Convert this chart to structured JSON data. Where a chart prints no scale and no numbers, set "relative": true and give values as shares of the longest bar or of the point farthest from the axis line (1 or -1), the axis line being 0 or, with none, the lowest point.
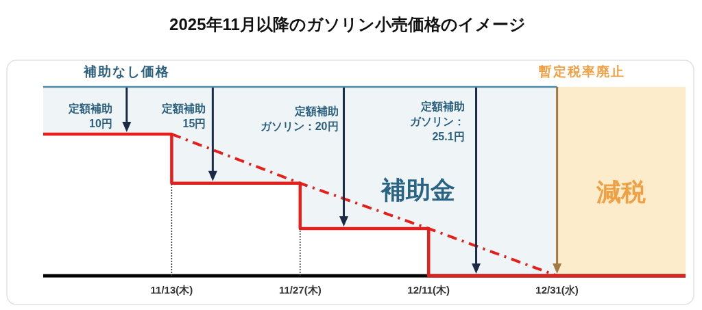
{
  "chart_data": {
    "type": "step",
    "title": "2025年11月以降のガソリン小売価格のイメージ",
    "relative": true,
    "tick_labels": "x",
    "categories": [
      null,
      "11/13(木)",
      "11/27(木)",
      "12/11(木)",
      "12/31(水)",
      null
    ],
    "series": [
      {
        "name": "補助なし価格",
        "type": "line",
        "color": "#4b8aab",
        "values": [
          1,
          1,
          1,
          1,
          1,
          null
        ],
        "lower": [
          0.75,
          0.49,
          0.25,
          0,
          0,
          null
        ],
        "upper": [
          1,
          1,
          1,
          1,
          1,
          null
        ]
      },
      {
        "name": "減税",
        "type": "area",
        "color": "#fdeccb",
        "values": [
          null,
          null,
          null,
          null,
          1,
          1
        ]
      },
      {
        "color": "#e3201b",
        "values": [
          0.75,
          0.49,
          0.25,
          0,
          0,
          0
        ]
      },
      {
        "type": "line",
        "line_style": "dashed",
        "color": "#e3201b",
        "values": [
          null,
          0.75,
          0.49,
          0.25,
          0,
          null
        ]
      },
      {
        "type": "line",
        "line_style": "dotted",
        "color": "#333333",
        "x": [
          "11/13(木)",
          "11/13(木)"
        ],
        "values": [
          0,
          0.49
        ]
      },
      {
        "type": "line",
        "line_style": "dotted",
        "color": "#333333",
        "x": [
          "11/27(木)",
          "11/27(木)"
        ],
        "values": [
          0,
          0.25
        ]
      }
    ],
    "ref_lines": [
      {
        "axis": "x",
        "value": "12/31(水)",
        "label": "暫定税率廃止",
        "color": "#a27843"
      }
    ],
    "annotations": [
      "定額補助10円",
      "定額補助15円",
      "定額補助ガソリン：20円",
      "定額補助ガソリン：25.1円",
      "補助金"
    ]
  }
}
